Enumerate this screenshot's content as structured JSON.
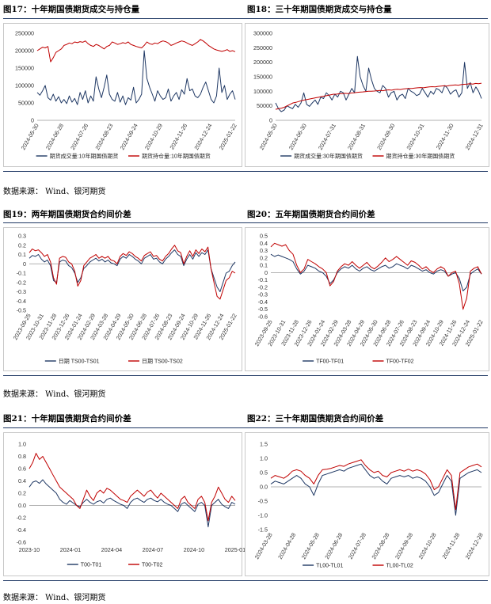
{
  "source_top": "数据来源：  Wind、银河期货",
  "source_mid": "数据来源：  Wind、银河期货",
  "source_bottom": "数据来源：  Wind、银河期货",
  "colors": {
    "navy": "#1f3864",
    "red": "#c00000"
  },
  "chart_data": [
    {
      "id": "c17",
      "type": "line",
      "panel_title": "图17：十年期国债期货成交与持仓量",
      "ylim": [
        0,
        250000
      ],
      "yticks": [
        "250000",
        "200000",
        "150000",
        "100000",
        "50000",
        "0"
      ],
      "xticks": [
        "2024-05-30",
        "2024-06-28",
        "2024-07-26",
        "2024-08-23",
        "2024-09-24",
        "2024-10-29",
        "2024-11-26",
        "2024-12-24",
        "2025-01-22"
      ],
      "series": [
        {
          "name": "期货成交量:10年期国债期货",
          "color": "#1f3864",
          "values": [
            80000,
            72000,
            85000,
            100000,
            65000,
            58000,
            75000,
            55000,
            68000,
            50000,
            60000,
            48000,
            70000,
            52000,
            63000,
            45000,
            80000,
            60000,
            85000,
            50000,
            70000,
            55000,
            125000,
            90000,
            65000,
            95000,
            130000,
            75000,
            60000,
            55000,
            80000,
            52000,
            70000,
            45000,
            65000,
            58000,
            95000,
            50000,
            60000,
            75000,
            200000,
            120000,
            95000,
            75000,
            55000,
            85000,
            70000,
            60000,
            65000,
            90000,
            55000,
            70000,
            80000,
            60000,
            88000,
            75000,
            120000,
            85000,
            90000,
            70000,
            65000,
            75000,
            95000,
            110000,
            85000,
            60000,
            50000,
            70000,
            150000,
            80000,
            100000,
            60000,
            75000,
            85000,
            60000
          ]
        },
        {
          "name": "期货持仓量:10年期国债期货",
          "color": "#c00000",
          "values": [
            200000,
            205000,
            210000,
            208000,
            212000,
            168000,
            180000,
            195000,
            200000,
            205000,
            215000,
            218000,
            222000,
            220000,
            225000,
            223000,
            226000,
            224000,
            228000,
            220000,
            215000,
            212000,
            218000,
            215000,
            210000,
            205000,
            212000,
            215000,
            225000,
            222000,
            218000,
            220000,
            223000,
            221000,
            225000,
            218000,
            215000,
            212000,
            210000,
            208000,
            215000,
            225000,
            220000,
            218000,
            222000,
            220000,
            225000,
            228000,
            226000,
            222000,
            215000,
            218000,
            222000,
            225000,
            228000,
            226000,
            222000,
            218000,
            215000,
            220000,
            225000,
            232000,
            228000,
            222000,
            215000,
            210000,
            205000,
            202000,
            200000,
            198000,
            200000,
            203000,
            198000,
            200000,
            197000
          ]
        }
      ]
    },
    {
      "id": "c18",
      "type": "line",
      "panel_title": "图18：三十年期国债期货成交与持仓量",
      "ylim": [
        0,
        300000
      ],
      "yticks": [
        "300000",
        "250000",
        "200000",
        "150000",
        "100000",
        "50000",
        "0"
      ],
      "xticks": [
        "2024-05-30",
        "2024-06-30",
        "2024-07-31",
        "2024-08-31",
        "2024-09-30",
        "2024-10-31",
        "2024-11-30",
        "2024-12-31"
      ],
      "series": [
        {
          "name": "期货成交量:30年期国债期货",
          "color": "#1f3864",
          "values": [
            60000,
            40000,
            30000,
            35000,
            50000,
            45000,
            40000,
            55000,
            45000,
            60000,
            95000,
            55000,
            48000,
            60000,
            70000,
            55000,
            80000,
            75000,
            95000,
            85000,
            70000,
            90000,
            80000,
            100000,
            95000,
            70000,
            90000,
            110000,
            95000,
            220000,
            150000,
            120000,
            100000,
            180000,
            140000,
            110000,
            100000,
            95000,
            120000,
            110000,
            80000,
            95000,
            100000,
            70000,
            85000,
            90000,
            75000,
            110000,
            100000,
            95000,
            85000,
            90000,
            110000,
            95000,
            80000,
            100000,
            90000,
            110000,
            105000,
            95000,
            120000,
            110000,
            90000,
            100000,
            105000,
            80000,
            95000,
            200000,
            110000,
            130000,
            95000,
            115000,
            100000,
            75000
          ]
        },
        {
          "name": "期货持仓量:30年期国债期货",
          "color": "#c00000",
          "values": [
            38000,
            40000,
            42000,
            45000,
            50000,
            55000,
            60000,
            62000,
            65000,
            68000,
            70000,
            72000,
            74000,
            76000,
            78000,
            80000,
            82000,
            84000,
            86000,
            88000,
            90000,
            90000,
            92000,
            92000,
            93000,
            92000,
            94000,
            95000,
            96000,
            97000,
            98000,
            99000,
            100000,
            100000,
            101000,
            102000,
            103000,
            102000,
            104000,
            105000,
            104000,
            106000,
            107000,
            106000,
            108000,
            109000,
            110000,
            110000,
            111000,
            112000,
            113000,
            112000,
            114000,
            115000,
            116000,
            115000,
            117000,
            118000,
            119000,
            118000,
            120000,
            121000,
            122000,
            121000,
            123000,
            124000,
            125000,
            126000,
            125000,
            127000,
            126000,
            128000
          ]
        }
      ]
    },
    {
      "id": "c19",
      "type": "line",
      "panel_title": "图19：两年期国债期货合约间价差",
      "ylim": [
        -0.5,
        0.3
      ],
      "yticks": [
        "0.3",
        "0.2",
        "0.1",
        "0",
        "-0.1",
        "-0.2",
        "-0.3",
        "-0.4",
        "-0.5"
      ],
      "xticks": [
        "2023-09-25",
        "2023-10-31",
        "2023-11-28",
        "2023-12-26",
        "2024-01-24",
        "2024-02-29",
        "2024-03-28",
        "2024-04-29",
        "2024-05-30",
        "2024-06-28",
        "2024-07-26",
        "2024-08-23",
        "2024-09-24",
        "2024-10-29",
        "2024-11-26",
        "2024-12-24",
        "2025-01-22"
      ],
      "series": [
        {
          "name": "日期 TS00-TS01",
          "color": "#1f3864",
          "values": [
            0.06,
            0.09,
            0.08,
            0.1,
            0.05,
            0.02,
            0.04,
            -0.02,
            -0.18,
            -0.2,
            0.02,
            0.04,
            0.03,
            -0.02,
            -0.04,
            -0.1,
            -0.2,
            -0.15,
            -0.05,
            -0.02,
            0.02,
            0.04,
            0.06,
            0.03,
            0.05,
            0.02,
            0.04,
            0.01,
            0.0,
            -0.02,
            0.05,
            0.08,
            0.06,
            0.1,
            0.08,
            0.05,
            0.03,
            0.0,
            0.06,
            0.08,
            0.1,
            0.05,
            0.06,
            0.02,
            0.0,
            0.05,
            0.08,
            0.12,
            0.15,
            0.1,
            0.08,
            -0.02,
            0.05,
            0.1,
            0.05,
            0.12,
            0.08,
            0.12,
            0.1,
            0.15,
            -0.05,
            -0.15,
            -0.25,
            -0.3,
            -0.2,
            -0.1,
            -0.08,
            -0.02,
            0.02
          ]
        },
        {
          "name": "日期 TS00-TS02",
          "color": "#c00000",
          "values": [
            0.12,
            0.16,
            0.14,
            0.15,
            0.12,
            0.08,
            0.1,
            0.02,
            -0.15,
            -0.22,
            0.06,
            0.08,
            0.07,
            0.02,
            0.0,
            -0.08,
            -0.24,
            -0.18,
            -0.02,
            0.02,
            0.06,
            0.08,
            0.1,
            0.06,
            0.08,
            0.06,
            0.08,
            0.04,
            0.03,
            0.0,
            0.08,
            0.11,
            0.09,
            0.13,
            0.11,
            0.08,
            0.06,
            0.03,
            0.09,
            0.11,
            0.13,
            0.08,
            0.09,
            0.05,
            0.03,
            0.08,
            0.11,
            0.16,
            0.2,
            0.14,
            0.12,
            0.0,
            0.08,
            0.14,
            0.08,
            0.15,
            0.11,
            0.16,
            0.13,
            0.18,
            -0.05,
            -0.2,
            -0.35,
            -0.38,
            -0.28,
            -0.18,
            -0.15,
            -0.08,
            -0.1
          ]
        }
      ]
    },
    {
      "id": "c20",
      "type": "line",
      "panel_title": "图20：五年期国债期货合约间价差",
      "ylim": [
        -0.6,
        0.5
      ],
      "yticks": [
        "0.5",
        "0.4",
        "0.3",
        "0.2",
        "0.1",
        "0",
        "-0.1",
        "-0.2",
        "-0.3",
        "-0.4",
        "-0.5",
        "-0.6"
      ],
      "xticks": [
        "2023-09-25",
        "2023-10-31",
        "2023-11-28",
        "2023-12-26",
        "2024-01-24",
        "2024-02-29",
        "2024-03-28",
        "2024-04-29",
        "2024-05-30",
        "2024-06-28",
        "2024-07-26",
        "2024-08-23",
        "2024-09-24",
        "2024-10-29",
        "2024-11-26",
        "2024-12-24",
        "2025-01-22"
      ],
      "series": [
        {
          "name": "TF00-TF01",
          "color": "#1f3864",
          "values": [
            0.25,
            0.22,
            0.24,
            0.22,
            0.2,
            0.18,
            0.15,
            0.05,
            -0.02,
            0.02,
            0.1,
            0.08,
            0.06,
            0.02,
            0.0,
            -0.05,
            -0.15,
            -0.1,
            0.0,
            0.05,
            0.08,
            0.06,
            0.1,
            0.05,
            0.02,
            0.06,
            0.08,
            0.04,
            0.02,
            0.05,
            0.08,
            0.1,
            0.06,
            0.08,
            0.12,
            0.1,
            0.08,
            0.05,
            0.1,
            0.08,
            0.05,
            0.02,
            0.04,
            0.0,
            -0.02,
            0.02,
            0.04,
            0.02,
            -0.05,
            -0.02,
            0.0,
            -0.08,
            -0.25,
            -0.2,
            -0.02,
            0.02,
            0.05,
            -0.02
          ]
        },
        {
          "name": "TF00-TF02",
          "color": "#c00000",
          "values": [
            0.35,
            0.4,
            0.38,
            0.36,
            0.38,
            0.3,
            0.25,
            0.1,
            0.0,
            0.05,
            0.18,
            0.15,
            0.12,
            0.08,
            0.05,
            0.0,
            -0.18,
            -0.12,
            0.02,
            0.08,
            0.12,
            0.1,
            0.15,
            0.1,
            0.06,
            0.1,
            0.14,
            0.08,
            0.05,
            0.09,
            0.14,
            0.2,
            0.15,
            0.18,
            0.22,
            0.18,
            0.14,
            0.1,
            0.16,
            0.14,
            0.1,
            0.05,
            0.08,
            0.03,
            0.0,
            0.05,
            0.08,
            0.05,
            -0.05,
            0.0,
            0.02,
            -0.15,
            -0.5,
            -0.35,
            0.02,
            0.06,
            0.08,
            -0.02
          ]
        }
      ]
    },
    {
      "id": "c21",
      "type": "line",
      "panel_title": "图21：十年期国债期货合约间价差",
      "ylim": [
        -0.6,
        1.0
      ],
      "yticks": [
        "1.0",
        "0.8",
        "0.6",
        "0.4",
        "0.2",
        "0.0",
        "-0.2",
        "-0.4",
        "-0.6"
      ],
      "xticks": [
        "2023-10",
        "2024-01",
        "2024-04",
        "2024-07",
        "2024-10",
        "2025-01"
      ],
      "series": [
        {
          "name": "T00-T01",
          "color": "#1f3864",
          "values": [
            0.3,
            0.38,
            0.4,
            0.36,
            0.42,
            0.35,
            0.3,
            0.25,
            0.2,
            0.1,
            0.05,
            0.02,
            0.08,
            0.04,
            0.0,
            -0.02,
            0.05,
            0.1,
            0.05,
            0.02,
            0.06,
            0.08,
            0.04,
            0.1,
            0.12,
            0.08,
            0.05,
            0.02,
            0.0,
            -0.05,
            0.05,
            0.1,
            0.12,
            0.08,
            0.05,
            0.1,
            0.12,
            0.08,
            0.06,
            0.1,
            0.05,
            0.02,
            0.0,
            -0.05,
            -0.1,
            0.02,
            0.05,
            0.0,
            -0.05,
            -0.1,
            0.02,
            0.05,
            0.0,
            -0.35,
            0.0,
            0.05,
            0.1,
            0.02,
            -0.02,
            -0.05,
            0.05,
            0.02
          ]
        },
        {
          "name": "T00-T02",
          "color": "#c00000",
          "values": [
            0.6,
            0.7,
            0.85,
            0.75,
            0.8,
            0.7,
            0.6,
            0.5,
            0.4,
            0.3,
            0.25,
            0.2,
            0.15,
            0.1,
            0.0,
            -0.05,
            0.1,
            0.25,
            0.15,
            0.08,
            0.2,
            0.25,
            0.2,
            0.28,
            0.25,
            0.2,
            0.15,
            0.1,
            0.08,
            0.05,
            0.15,
            0.2,
            0.25,
            0.2,
            0.15,
            0.22,
            0.25,
            0.18,
            0.12,
            0.2,
            0.15,
            0.1,
            0.05,
            0.0,
            -0.05,
            0.1,
            0.15,
            0.05,
            0.0,
            -0.05,
            0.1,
            0.15,
            0.05,
            -0.25,
            0.05,
            0.15,
            0.3,
            0.2,
            0.1,
            0.05,
            0.15,
            0.08
          ]
        }
      ]
    },
    {
      "id": "c22",
      "type": "line",
      "panel_title": "图22：三十年期国债期货合约间价差",
      "ylim": [
        -1.5,
        1.5
      ],
      "yticks": [
        "1.5",
        "1.0",
        "0.5",
        "0.0",
        "-0.5",
        "-1.0",
        "-1.5"
      ],
      "xticks": [
        "2024-03-28",
        "2024-04-28",
        "2024-05-28",
        "2024-06-28",
        "2024-07-28",
        "2024-08-28",
        "2024-09-28",
        "2024-10-28",
        "2024-11-28",
        "2024-12-28"
      ],
      "series": [
        {
          "name": "TL00-TL01",
          "color": "#1f3864",
          "values": [
            0.1,
            0.2,
            0.15,
            0.1,
            0.2,
            0.3,
            0.4,
            0.3,
            0.1,
            0.0,
            -0.3,
            0.1,
            0.4,
            0.45,
            0.5,
            0.55,
            0.6,
            0.55,
            0.65,
            0.7,
            0.75,
            0.8,
            0.6,
            0.4,
            0.3,
            0.35,
            0.2,
            0.1,
            0.3,
            0.35,
            0.4,
            0.35,
            0.4,
            0.3,
            0.35,
            0.3,
            0.2,
            0.0,
            -0.3,
            -0.2,
            0.1,
            0.4,
            0.2,
            -1.0,
            0.3,
            0.4,
            0.5,
            0.55,
            0.6,
            0.5
          ]
        },
        {
          "name": "TL00-TL02",
          "color": "#c00000",
          "values": [
            0.3,
            0.4,
            0.35,
            0.3,
            0.4,
            0.55,
            0.6,
            0.55,
            0.4,
            0.3,
            0.1,
            0.4,
            0.6,
            0.62,
            0.65,
            0.7,
            0.75,
            0.72,
            0.8,
            0.85,
            0.9,
            0.95,
            0.75,
            0.6,
            0.5,
            0.55,
            0.4,
            0.35,
            0.5,
            0.55,
            0.6,
            0.55,
            0.62,
            0.55,
            0.6,
            0.55,
            0.45,
            0.25,
            -0.1,
            0.0,
            0.3,
            0.6,
            0.4,
            -0.8,
            0.5,
            0.6,
            0.7,
            0.75,
            0.8,
            0.7
          ]
        }
      ]
    }
  ]
}
